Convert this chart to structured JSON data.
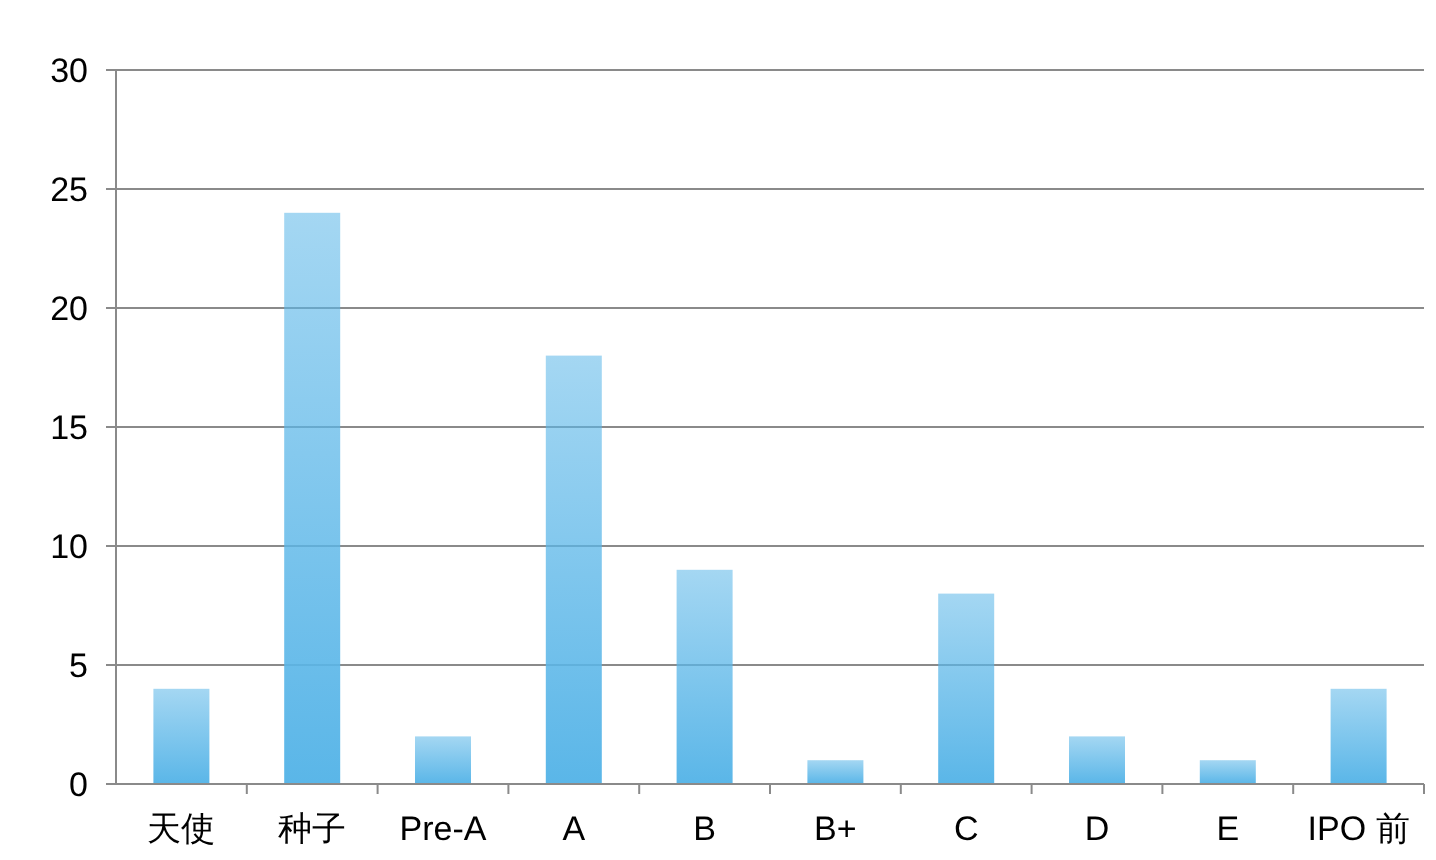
{
  "chart_data": {
    "type": "bar",
    "categories": [
      "天使",
      "种子",
      "Pre-A",
      "A",
      "B",
      "B+",
      "C",
      "D",
      "E",
      "IPO 前"
    ],
    "values": [
      4,
      24,
      2,
      18,
      9,
      1,
      8,
      2,
      1,
      4
    ],
    "color": "#5ab6e8",
    "ylim": [
      0,
      30
    ],
    "yticks": [
      0,
      5,
      10,
      15,
      20,
      25,
      30
    ],
    "grid": "y"
  }
}
